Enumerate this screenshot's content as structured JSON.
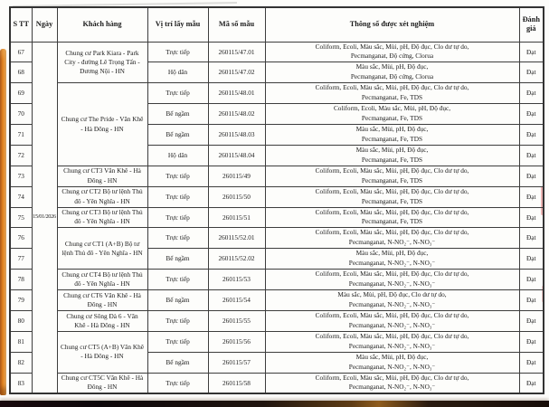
{
  "document": {
    "kind": "scanned water-quality test report page",
    "date": "15/01/2026",
    "colors": {
      "paper": "#fdfdfb",
      "text": "#1c1c1c",
      "table_border": "#3d3d3d",
      "side_strip_orange": "#f18a1c",
      "bottom_band_dark": "#18090d"
    }
  },
  "table": {
    "headers": {
      "stt": "S TT",
      "date": "Ngày",
      "customer": "Khách hàng",
      "position": "Vị trí lấy mẫu",
      "code": "Mã số mẫu",
      "params": "Thông số được xét nghiệm",
      "result": "Đánh giá"
    },
    "date_value": "15/01/2026",
    "rows": [
      {
        "stt": "67",
        "customer": "Chung cư Park Kiara - Park City - đường Lê Trọng Tấn - Dương Nội - HN",
        "customer_rowspan": 2,
        "position": "Trực tiếp",
        "code": "260115/47.01",
        "params": [
          "Coliform, Ecoli, Màu sắc, Mùi, pH, Độ đục, Clo dư tự do,",
          "Pecmanganat, Độ cứng, Clorua"
        ],
        "result": "Đạt"
      },
      {
        "stt": "68",
        "position": "Hộ dân",
        "code": "260115/47.02",
        "params": [
          "Màu sắc, Mùi, pH, Độ đục,",
          "Pecmanganat, Độ cứng, Clorua"
        ],
        "result": "Đạt"
      },
      {
        "stt": "69",
        "customer": "Chung cư The Pride - Văn Khê - Hà Đông - HN",
        "customer_rowspan": 4,
        "position": "Trực tiếp",
        "code": "260115/48.01",
        "params": [
          "Coliform, Ecoli, Màu sắc, Mùi, pH, Độ đục, Clo dư tự do,",
          "Pecmanganat, Fe, TDS"
        ],
        "result": "Đạt"
      },
      {
        "stt": "70",
        "position": "Bể ngầm",
        "code": "260115/48.02",
        "params": [
          "Coliform, Ecoli, Màu sắc, Mùi, pH, Độ đục,",
          "Pecmanganat, Fe, TDS"
        ],
        "result": "Đạt"
      },
      {
        "stt": "71",
        "position": "Bể ngầm",
        "code": "260115/48.03",
        "params": [
          "Màu sắc, Mùi, pH, Độ đục,",
          "Pecmanganat, Fe, TDS"
        ],
        "result": "Đạt"
      },
      {
        "stt": "72",
        "position": "Hộ dân",
        "code": "260115/48.04",
        "params": [
          "Màu sắc, Mùi, pH, Độ đục,",
          "Pecmanganat, Fe, TDS"
        ],
        "result": "Đạt"
      },
      {
        "stt": "73",
        "customer": "Chung cư CT3 Văn Khê - Hà Đông - HN",
        "customer_rowspan": 1,
        "position": "Trực tiếp",
        "code": "260115/49",
        "params": [
          "Coliform, Ecoli, Màu sắc, Mùi, pH, Độ đục, Clo dư tự do,",
          "Pecmanganat, Fe, TDS"
        ],
        "result": "Đạt"
      },
      {
        "stt": "74",
        "customer": "Chung cư CT2 Bộ tư lệnh Thủ đô - Yên Nghĩa - HN",
        "customer_rowspan": 1,
        "position": "Trực tiếp",
        "code": "260115/50",
        "params": [
          "Coliform, Ecoli, Màu sắc, Mùi, pH, Độ đục, Clo dư tự do,",
          "Pecmanganat, Fe, TDS"
        ],
        "result": "Đạt"
      },
      {
        "stt": "75",
        "customer": "Chung cư CT3 Bộ tư lệnh Thủ đô - Yên Nghĩa - HN",
        "customer_rowspan": 1,
        "position": "Trực tiếp",
        "code": "260115/51",
        "params": [
          "Coliform, Ecoli, Màu sắc, Mùi, pH, Độ đục, Clo dư tự do,",
          "Pecmanganat, Fe, TDS"
        ],
        "result": "Đạt"
      },
      {
        "stt": "76",
        "customer": "Chung cư CT1 (A+B) Bộ tư lệnh Thủ đô - Yên Nghĩa - HN",
        "customer_rowspan": 2,
        "position": "Trực tiếp",
        "code": "260115/52.01",
        "params": [
          "Coliform, Ecoli, Màu sắc, Mùi, pH, Độ đục, Clo dư tự do,",
          "Pecmanganat, N-NO₂⁻, N-NO₃⁻"
        ],
        "result": "Đạt"
      },
      {
        "stt": "77",
        "position": "Bể ngầm",
        "code": "260115/52.02",
        "params": [
          "Màu sắc, Mùi, pH, Độ đục,",
          "Pecmanganat, N-NO₂⁻, N-NO₃⁻"
        ],
        "result": "Đạt"
      },
      {
        "stt": "78",
        "customer": "Chung cư CT4 Bộ tư lệnh Thủ đô - Yên Nghĩa - HN",
        "customer_rowspan": 1,
        "position": "Trực tiếp",
        "code": "260115/53",
        "params": [
          "Coliform, Ecoli, Màu sắc, Mùi, pH, Độ đục, Clo dư tự do,",
          "Pecmanganat, N-NO₂⁻, N-NO₃⁻"
        ],
        "result": "Đạt"
      },
      {
        "stt": "79",
        "customer": "Chung cư CT6 Văn Khê - Hà Đông - HN",
        "customer_rowspan": 1,
        "position": "Bể ngầm",
        "code": "260115/54",
        "params": [
          "Màu sắc, Mùi, pH, Độ đục, Clo dư tự do,",
          "Pecmanganat, N-NO₂⁻, N-NO₃⁻"
        ],
        "result": "Đạt"
      },
      {
        "stt": "80",
        "customer": "Chung cư Sông Đà 6 - Văn Khê - Hà Đông - HN",
        "customer_rowspan": 1,
        "position": "Trực tiếp",
        "code": "260115/55",
        "params": [
          "Coliform, Ecoli, Màu sắc, Mùi, pH, Độ đục, Clo dư tự do,",
          "Pecmanganat, N-NO₂⁻, N-NO₃⁻"
        ],
        "result": "Đạt"
      },
      {
        "stt": "81",
        "customer": "Chung cư CT5 (A+B) Văn Khê - Hà Đông - HN",
        "customer_rowspan": 2,
        "position": "Trực tiếp",
        "code": "260115/56",
        "params": [
          "Coliform, Ecoli, Màu sắc, Mùi, pH, Độ đục, Clo dư tự do,",
          "Pecmanganat, N-NO₂⁻, N-NO₃⁻"
        ],
        "result": "Đạt"
      },
      {
        "stt": "82",
        "position": "Bể ngầm",
        "code": "260115/57",
        "params": [
          "Màu sắc, Mùi, pH, Độ đục,",
          "Pecmanganat, N-NO₂⁻, N-NO₃⁻"
        ],
        "result": "Đạt"
      },
      {
        "stt": "83",
        "customer": "Chung cư CT5C Văn Khê - Hà Đông - HN",
        "customer_rowspan": 1,
        "position": "Trực tiếp",
        "code": "260115/58",
        "params": [
          "Coliform, Ecoli, Màu sắc, Mùi, pH, Độ đục, Clo dư tự do,",
          "Pecmanganat, N-NO₂⁻, N-NO₃⁻"
        ],
        "result": "Đạt"
      }
    ]
  }
}
